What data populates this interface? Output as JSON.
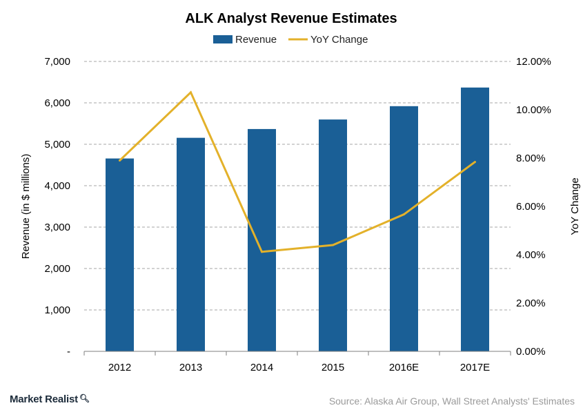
{
  "chart_data": {
    "type": "bar",
    "title": "ALK Analyst  Revenue Estimates",
    "categories": [
      "2012",
      "2013",
      "2014",
      "2015",
      "2016E",
      "2017E"
    ],
    "series": [
      {
        "name": "Revenue",
        "type": "bar",
        "axis": "left",
        "color": "#1a5f96",
        "values": [
          4657,
          5156,
          5368,
          5598,
          5920,
          6370
        ]
      },
      {
        "name": "YoY Change",
        "type": "line",
        "axis": "right",
        "color": "#e3b12a",
        "values": [
          7.9,
          10.72,
          4.12,
          4.4,
          5.67,
          7.84
        ]
      }
    ],
    "ylabel": "Revenue (in $ millions)",
    "y2label": "YoY Change",
    "ylim": [
      0,
      7000
    ],
    "y2lim": [
      0,
      12
    ],
    "yticks": [
      "-",
      "1,000",
      "2,000",
      "3,000",
      "4,000",
      "5,000",
      "6,000",
      "7,000"
    ],
    "y2ticks": [
      "0.00%",
      "2.00%",
      "4.00%",
      "6.00%",
      "8.00%",
      "10.00%",
      "12.00%"
    ],
    "grid": true,
    "legend_position": "top-center"
  },
  "footer": {
    "brand": "Market Realist",
    "brand_icon": "magnifier-icon",
    "source": "Source: Alaska Air Group, Wall Street Analysts' Estimates"
  }
}
